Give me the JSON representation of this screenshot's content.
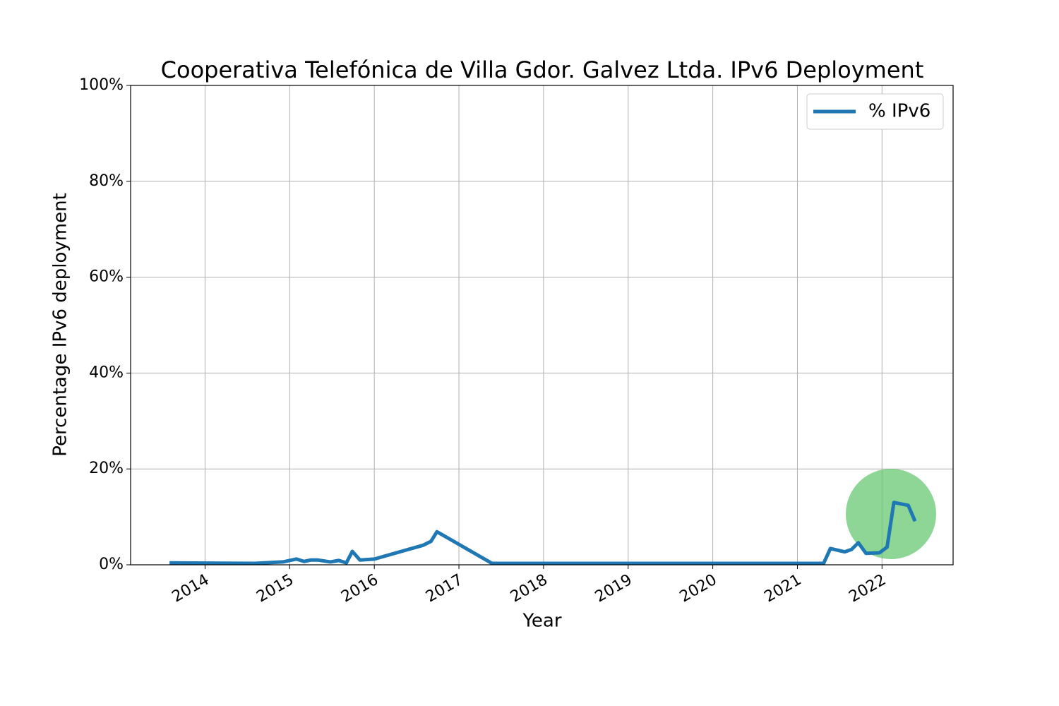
{
  "chart_data": {
    "type": "line",
    "title": "Cooperativa Telefónica de Villa Gdor. Galvez Ltda. IPv6 Deployment",
    "x_label": "Year",
    "y_label": "Percentage IPv6 deployment",
    "x": [
      2013.58,
      2014.58,
      2014.92,
      2015.08,
      2015.17,
      2015.25,
      2015.33,
      2015.48,
      2015.58,
      2015.67,
      2015.74,
      2015.83,
      2016.0,
      2016.58,
      2016.67,
      2016.74,
      2017.39,
      2021.31,
      2021.39,
      2021.56,
      2021.64,
      2021.72,
      2021.81,
      2021.97,
      2022.06,
      2022.14,
      2022.31,
      2022.39
    ],
    "series": [
      {
        "name": "% IPv6",
        "color": "#1f77b4",
        "values": [
          0.4,
          0.3,
          0.6,
          1.2,
          0.7,
          1.0,
          1.0,
          0.6,
          0.9,
          0.4,
          2.8,
          1.0,
          1.2,
          4.1,
          4.9,
          6.9,
          0.3,
          0.3,
          3.4,
          2.7,
          3.2,
          4.6,
          2.4,
          2.5,
          3.7,
          13.0,
          12.4,
          9.1
        ]
      }
    ],
    "xlim": [
      2013.12,
      2022.84
    ],
    "xticks": [
      2014,
      2015,
      2016,
      2017,
      2018,
      2019,
      2020,
      2021,
      2022
    ],
    "ylim": [
      0,
      100
    ],
    "yticks": [
      {
        "value": 0,
        "label": "0%"
      },
      {
        "value": 20,
        "label": "20%"
      },
      {
        "value": 40,
        "label": "40%"
      },
      {
        "value": 60,
        "label": "60%"
      },
      {
        "value": 80,
        "label": "80%"
      },
      {
        "value": 100,
        "label": "100%"
      }
    ],
    "grid": true,
    "legend": "upper right"
  }
}
